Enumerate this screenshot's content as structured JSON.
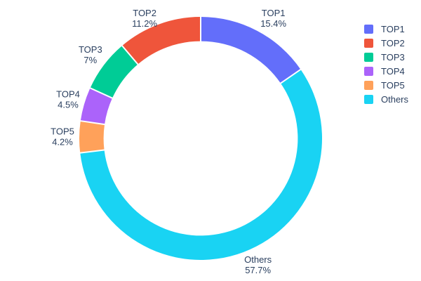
{
  "chart_data": {
    "type": "pie",
    "subtype": "donut",
    "title": "",
    "labels": [
      "TOP1",
      "TOP2",
      "TOP3",
      "TOP4",
      "TOP5",
      "Others"
    ],
    "values": [
      15.4,
      11.2,
      7,
      4.5,
      4.2,
      57.7
    ],
    "value_labels": [
      "15.4%",
      "11.2%",
      "7%",
      "4.5%",
      "4.2%",
      "57.7%"
    ],
    "colors": [
      "#636efa",
      "#ef553b",
      "#00cc96",
      "#ab63fa",
      "#ffa15a",
      "#19d3f3"
    ],
    "hole": 0.8,
    "clockwise_order_from_top": [
      0,
      5,
      4,
      3,
      2,
      1
    ],
    "legend_position": "right",
    "legend_entries": [
      "TOP1",
      "TOP2",
      "TOP3",
      "TOP4",
      "TOP5",
      "Others"
    ],
    "text_color": "#2a3f5f",
    "background_color": "#ffffff",
    "slice_border_color": "#ffffff"
  }
}
